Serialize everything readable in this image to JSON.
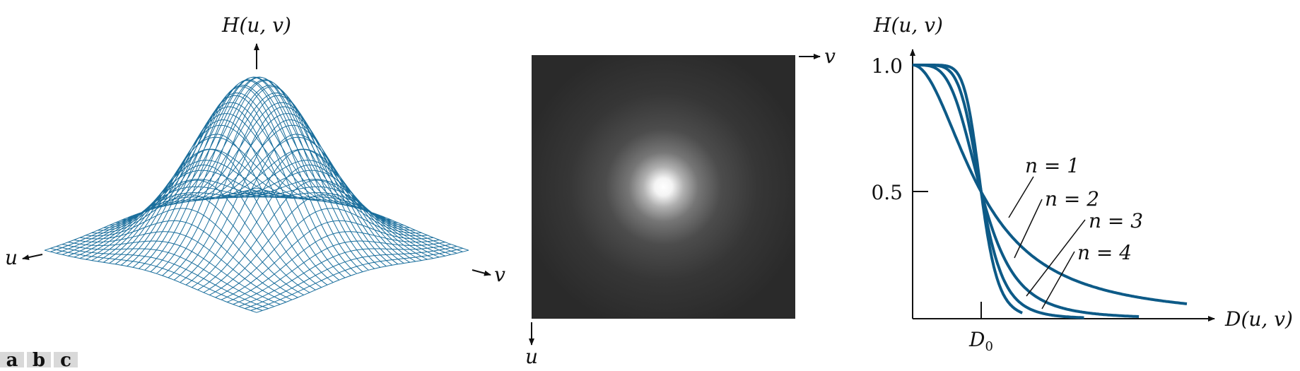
{
  "colors": {
    "curve": "#0d5a87",
    "mesh": "#1a6e9c",
    "axis": "#111111",
    "image_dark": "#2a2a2a",
    "image_bright": "#ffffff",
    "tag_bg": "#d9d9d9"
  },
  "surface_panel": {
    "z_label": "H(u, v)",
    "u_label": "u",
    "v_label": "v"
  },
  "image_panel": {
    "v_label": "v",
    "u_label": "u"
  },
  "panel_tags": [
    "a",
    "b",
    "c"
  ],
  "chart_data": {
    "type": "line",
    "ylabel": "H(u, v)",
    "xlabel": "D(u, v)",
    "x_tick_label": "D0",
    "x_tick_base": "D",
    "x_tick_sub": "0",
    "y_ticks": [
      "1.0",
      "0.5"
    ],
    "series": [
      {
        "name": "n = 1",
        "values_note": "H = 1/(1+(D/D0)^2)"
      },
      {
        "name": "n = 2",
        "values_note": "H = 1/(1+(D/D0)^4)"
      },
      {
        "name": "n = 3",
        "values_note": "H = 1/(1+(D/D0)^6)"
      },
      {
        "name": "n = 4",
        "values_note": "H = 1/(1+(D/D0)^8)"
      }
    ],
    "orders": [
      1,
      2,
      3,
      4
    ],
    "x_range_in_D0": [
      0,
      4.1
    ],
    "y_range": [
      0,
      1.0
    ],
    "grid": false
  }
}
